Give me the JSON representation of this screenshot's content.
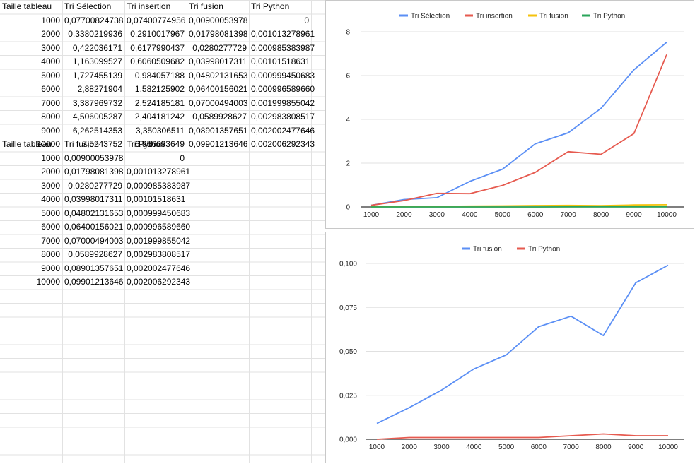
{
  "sheet": {
    "table1": {
      "headers": [
        "Taille tableau",
        "Tri Sélection",
        "Tri  insertion",
        "Tri fusion",
        "Tri Python"
      ],
      "rows": [
        [
          "1000",
          "0,07700824738",
          "0,07400774956",
          "0,00900053978",
          "0"
        ],
        [
          "2000",
          "0,3380219936",
          "0,2910017967",
          "0,01798081398",
          "0,001013278961"
        ],
        [
          "3000",
          "0,422036171",
          "0,6177990437",
          "0,0280277729",
          "0,000985383987"
        ],
        [
          "4000",
          "1,163099527",
          "0,6060509682",
          "0,03998017311",
          "0,00101518631"
        ],
        [
          "5000",
          "1,727455139",
          "0,984057188",
          "0,04802131653",
          "0,000999450683"
        ],
        [
          "6000",
          "2,88271904",
          "1,582125902",
          "0,06400156021",
          "0,000996589660"
        ],
        [
          "7000",
          "3,387969732",
          "2,524185181",
          "0,07000494003",
          "0,001999855042"
        ],
        [
          "8000",
          "4,506005287",
          "2,404181242",
          "0,0589928627",
          "0,002983808517"
        ],
        [
          "9000",
          "6,262514353",
          "3,350306511",
          "0,08901357651",
          "0,002002477646"
        ],
        [
          "10000",
          "7,5243752",
          "6,956693649",
          "0,09901213646",
          "0,002006292343"
        ]
      ]
    },
    "table2": {
      "headers": [
        "Taille tableau",
        "Tri fusion",
        "Tri Python"
      ],
      "rows": [
        [
          "1000",
          "0,00900053978",
          "0"
        ],
        [
          "2000",
          "0,01798081398",
          "0,001013278961"
        ],
        [
          "3000",
          "0,0280277729",
          "0,000985383987"
        ],
        [
          "4000",
          "0,03998017311",
          "0,00101518631"
        ],
        [
          "5000",
          "0,04802131653",
          "0,000999450683"
        ],
        [
          "6000",
          "0,06400156021",
          "0,000996589660"
        ],
        [
          "7000",
          "0,07000494003",
          "0,001999855042"
        ],
        [
          "8000",
          "0,0589928627",
          "0,002983808517"
        ],
        [
          "9000",
          "0,08901357651",
          "0,002002477646"
        ],
        [
          "10000",
          "0,09901213646",
          "0,002006292343"
        ]
      ]
    }
  },
  "chart_data": [
    {
      "type": "line",
      "categories": [
        "1000",
        "2000",
        "3000",
        "4000",
        "5000",
        "6000",
        "7000",
        "8000",
        "9000",
        "10000"
      ],
      "series": [
        {
          "name": "Tri Sélection",
          "color": "#5b8ff5",
          "values": [
            0.077,
            0.338,
            0.422,
            1.163,
            1.727,
            2.883,
            3.388,
            4.506,
            6.263,
            7.524
          ]
        },
        {
          "name": "Tri  insertion",
          "color": "#e65a4f",
          "values": [
            0.074,
            0.291,
            0.618,
            0.606,
            0.984,
            1.582,
            2.524,
            2.404,
            3.35,
            6.957
          ]
        },
        {
          "name": "Tri fusion",
          "color": "#f4c20d",
          "values": [
            0.009,
            0.018,
            0.028,
            0.04,
            0.048,
            0.064,
            0.07,
            0.059,
            0.089,
            0.099
          ]
        },
        {
          "name": "Tri Python",
          "color": "#2aa55a",
          "values": [
            0,
            0.001,
            0.001,
            0.001,
            0.001,
            0.001,
            0.002,
            0.003,
            0.002,
            0.002
          ]
        }
      ],
      "yticks": [
        "0",
        "2",
        "4",
        "6",
        "8"
      ],
      "ytick_values": [
        0,
        2,
        4,
        6,
        8
      ],
      "ylim": [
        0,
        8
      ],
      "grid": true,
      "legend": "top"
    },
    {
      "type": "line",
      "categories": [
        "1000",
        "2000",
        "3000",
        "4000",
        "5000",
        "6000",
        "7000",
        "8000",
        "9000",
        "10000"
      ],
      "series": [
        {
          "name": "Tri fusion",
          "color": "#5b8ff5",
          "values": [
            0.009,
            0.018,
            0.028,
            0.04,
            0.048,
            0.064,
            0.07,
            0.059,
            0.089,
            0.099
          ]
        },
        {
          "name": "Tri Python",
          "color": "#e65a4f",
          "values": [
            0,
            0.001,
            0.001,
            0.001,
            0.001,
            0.001,
            0.002,
            0.003,
            0.002,
            0.002
          ]
        }
      ],
      "yticks": [
        "0,000",
        "0,025",
        "0,050",
        "0,075",
        "0,100"
      ],
      "ytick_values": [
        0,
        0.025,
        0.05,
        0.075,
        0.1
      ],
      "ylim": [
        0,
        0.1
      ],
      "grid": true,
      "legend": "top"
    }
  ]
}
